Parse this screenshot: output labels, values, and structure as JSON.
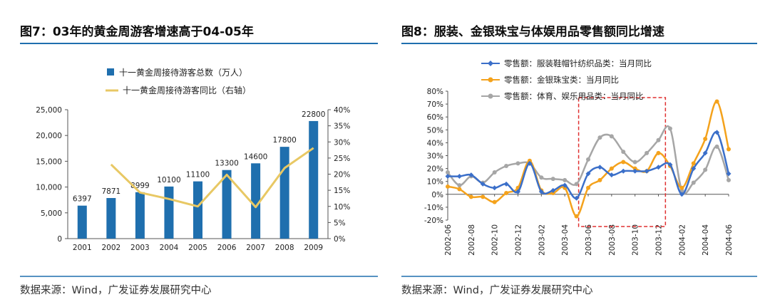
{
  "left": {
    "title": "图7：03年的黄金周游客增速高于04-05年",
    "source": "数据来源：Wind，广发证券发展研究中心",
    "colors": {
      "bar": "#1f6fae",
      "line": "#e8c864"
    }
  },
  "right": {
    "title": "图8：服装、金银珠宝与体娱用品零售额同比增速",
    "source": "数据来源：Wind，广发证券发展研究中心",
    "colors": {
      "apparel": "#3b6fc9",
      "jewelry": "#f4a21c",
      "sports": "#a6a6a6",
      "highlight": "#e03131"
    }
  },
  "chart_data": [
    {
      "type": "bar",
      "title": "03年的黄金周游客增速高于04-05年",
      "categories": [
        "2001",
        "2002",
        "2003",
        "2004",
        "2005",
        "2006",
        "2007",
        "2008",
        "2009"
      ],
      "series": [
        {
          "name": "十一黄金周接待游客总数（万人）",
          "axis": "left",
          "values": [
            6397,
            7871,
            8999,
            10100,
            11100,
            13300,
            14600,
            17800,
            22800
          ]
        },
        {
          "name": "十一黄金周接待游客同比（右轴）",
          "axis": "right",
          "type": "line",
          "values": [
            null,
            23.0,
            14.3,
            12.3,
            10.0,
            19.8,
            9.8,
            21.9,
            28.1
          ]
        }
      ],
      "data_labels": [
        "6397",
        "7871",
        "8999",
        "10100",
        "11100",
        "13300",
        "14600",
        "17800",
        "22800"
      ],
      "ylim_left": [
        0,
        25000
      ],
      "yticks_left": [
        "0",
        "5,000",
        "10,000",
        "15,000",
        "20,000",
        "25,000"
      ],
      "ylim_right": [
        0,
        40
      ],
      "yticks_right": [
        "0%",
        "5%",
        "10%",
        "15%",
        "20%",
        "25%",
        "30%",
        "35%",
        "40%"
      ],
      "legend": "top"
    },
    {
      "type": "line",
      "title": "服装、金银珠宝与体娱用品零售额同比增速",
      "x": [
        "2002-06",
        "2002-07",
        "2002-08",
        "2002-09",
        "2002-10",
        "2002-11",
        "2002-12",
        "2003-01",
        "2003-02",
        "2003-03",
        "2003-04",
        "2003-05",
        "2003-06",
        "2003-07",
        "2003-08",
        "2003-09",
        "2003-10",
        "2003-11",
        "2003-12",
        "2004-01",
        "2004-02",
        "2004-03",
        "2004-04",
        "2004-05",
        "2004-06"
      ],
      "xticks": [
        "2002-06",
        "2002-08",
        "2002-10",
        "2002-12",
        "2003-02",
        "2003-04",
        "2003-06",
        "2003-08",
        "2003-10",
        "2003-12",
        "2004-02",
        "2004-04",
        "2004-06"
      ],
      "series": [
        {
          "name": "零售额：服装鞋帽针纺织品类：当月同比",
          "values": [
            14,
            14,
            15,
            8,
            5,
            8,
            2,
            24,
            2,
            3,
            7,
            -3,
            16,
            21,
            15,
            18,
            18,
            18,
            21,
            23,
            0,
            20,
            32,
            48,
            16
          ]
        },
        {
          "name": "零售额：金银珠宝类：当月同比",
          "values": [
            6,
            4,
            -2,
            -2,
            -6,
            1,
            5,
            26,
            3,
            1,
            5,
            -17,
            5,
            11,
            20,
            25,
            20,
            18,
            32,
            22,
            5,
            24,
            43,
            72,
            35
          ]
        },
        {
          "name": "零售额：体育、娱乐用品类：当月同比",
          "values": [
            17,
            7,
            14,
            9,
            17,
            22,
            24,
            24,
            13,
            12,
            11,
            8,
            27,
            44,
            45,
            33,
            25,
            32,
            42,
            51,
            3,
            9,
            19,
            37,
            11
          ]
        }
      ],
      "ylim": [
        -20,
        80
      ],
      "yticks": [
        "-20%",
        "-10%",
        "0%",
        "10%",
        "20%",
        "30%",
        "40%",
        "50%",
        "60%",
        "70%",
        "80%"
      ],
      "legend": "top-left",
      "annotation": "dashed box highlighting 2003-05 to 2003-12"
    }
  ]
}
